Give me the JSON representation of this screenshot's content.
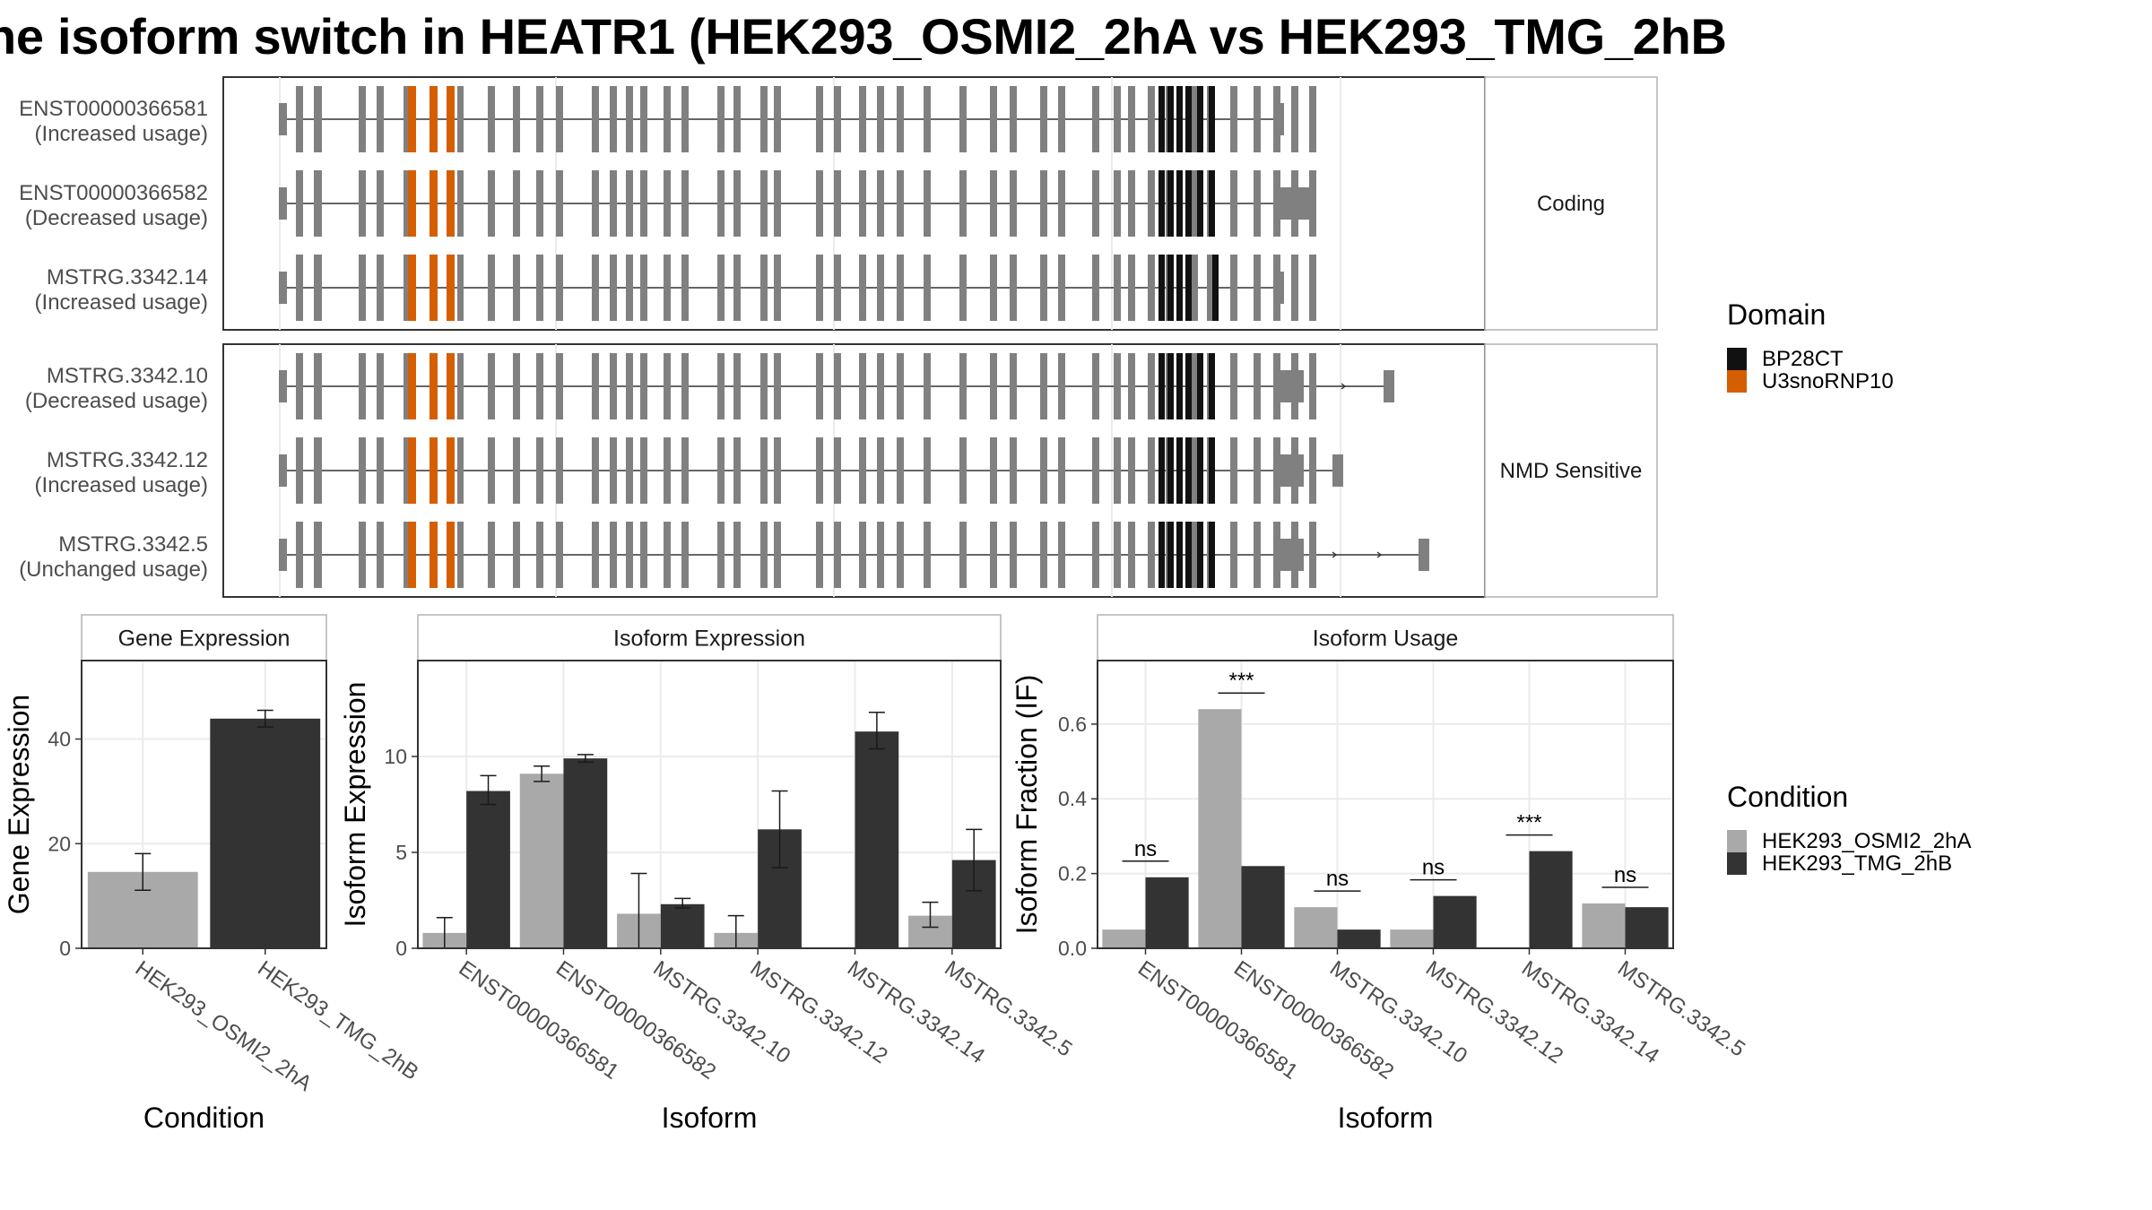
{
  "title": "he isoform switch in HEATR1 (HEK293_OSMI2_2hA vs HEK293_TMG_2hB",
  "colors": {
    "exon": "#808080",
    "intron": "#333333",
    "BP28CT": "#111111",
    "U3snoRNP10": "#D55E00",
    "condA": "#A9A9A9",
    "condB": "#333333",
    "panel_border": "#333333",
    "strip_border": "#b3b3b3",
    "grid": "#ebebeb"
  },
  "structure": {
    "facets": [
      {
        "label": "Coding",
        "isoforms": [
          {
            "id": "ENST00000366581",
            "usage": "(Increased usage)",
            "tail": "short"
          },
          {
            "id": "ENST00000366582",
            "usage": "(Decreased usage)",
            "tail": "long"
          },
          {
            "id": "MSTRG.3342.14",
            "usage": "(Increased usage)",
            "tail": "short14"
          }
        ]
      },
      {
        "label": "NMD Sensitive",
        "isoforms": [
          {
            "id": "MSTRG.3342.10",
            "usage": "(Decreased usage)",
            "tail": "ext10"
          },
          {
            "id": "MSTRG.3342.12",
            "usage": "(Increased usage)",
            "tail": "ext12"
          },
          {
            "id": "MSTRG.3342.5",
            "usage": "(Unchanged usage)",
            "tail": "ext5"
          }
        ]
      }
    ]
  },
  "legend_domain": {
    "title": "Domain",
    "items": [
      {
        "label": "BP28CT",
        "color": "#111111"
      },
      {
        "label": "U3snoRNP10",
        "color": "#D55E00"
      }
    ]
  },
  "legend_condition": {
    "title": "Condition",
    "items": [
      {
        "label": "HEK293_OSMI2_2hA",
        "color": "#A9A9A9"
      },
      {
        "label": "HEK293_TMG_2hB",
        "color": "#333333"
      }
    ]
  },
  "chart_data": [
    {
      "type": "bar",
      "title": "Gene Expression",
      "xlabel": "Condition",
      "ylabel": "Gene Expression",
      "ylim": [
        0,
        55
      ],
      "yticks": [
        0,
        20,
        40
      ],
      "categories": [
        "HEK293_OSMI2_2hA",
        "HEK293_TMG_2hB"
      ],
      "values": [
        14.6,
        43.9
      ],
      "error": [
        [
          11.1,
          18.1
        ],
        [
          42.3,
          45.5
        ]
      ]
    },
    {
      "type": "bar",
      "title": "Isoform Expression",
      "xlabel": "Isoform",
      "ylabel": "Isoform Expression",
      "ylim": [
        0,
        15
      ],
      "yticks": [
        0,
        5,
        10
      ],
      "categories": [
        "ENST00000366581",
        "ENST00000366582",
        "MSTRG.3342.10",
        "MSTRG.3342.12",
        "MSTRG.3342.14",
        "MSTRG.3342.5"
      ],
      "series": [
        {
          "name": "HEK293_OSMI2_2hA",
          "values": [
            0.8,
            9.1,
            1.8,
            0.8,
            0.0,
            1.7
          ],
          "error": [
            [
              0.0,
              1.6
            ],
            [
              8.7,
              9.5
            ],
            [
              0.0,
              3.9
            ],
            [
              0.0,
              1.7
            ],
            [
              0.0,
              0.0
            ],
            [
              1.1,
              2.4
            ]
          ]
        },
        {
          "name": "HEK293_TMG_2hB",
          "values": [
            8.2,
            9.9,
            2.3,
            6.2,
            11.3,
            4.6
          ],
          "error": [
            [
              7.5,
              9.0
            ],
            [
              9.7,
              10.1
            ],
            [
              2.1,
              2.6
            ],
            [
              4.2,
              8.2
            ],
            [
              10.4,
              12.3
            ],
            [
              3.0,
              6.2
            ]
          ]
        }
      ]
    },
    {
      "type": "bar",
      "title": "Isoform Usage",
      "xlabel": "Isoform",
      "ylabel": "Isoform Fraction (IF)",
      "ylim": [
        0,
        0.77
      ],
      "yticks": [
        0.0,
        0.2,
        0.4,
        0.6
      ],
      "ytick_labels": [
        "0.0",
        "0.2",
        "0.4",
        "0.6"
      ],
      "categories": [
        "ENST00000366581",
        "ENST00000366582",
        "MSTRG.3342.10",
        "MSTRG.3342.12",
        "MSTRG.3342.14",
        "MSTRG.3342.5"
      ],
      "series": [
        {
          "name": "HEK293_OSMI2_2hA",
          "values": [
            0.05,
            0.64,
            0.11,
            0.05,
            0.0,
            0.12
          ]
        },
        {
          "name": "HEK293_TMG_2hB",
          "values": [
            0.19,
            0.22,
            0.05,
            0.14,
            0.26,
            0.11
          ]
        }
      ],
      "annotations": [
        "ns",
        "***",
        "ns",
        "ns",
        "***",
        "ns"
      ]
    }
  ]
}
